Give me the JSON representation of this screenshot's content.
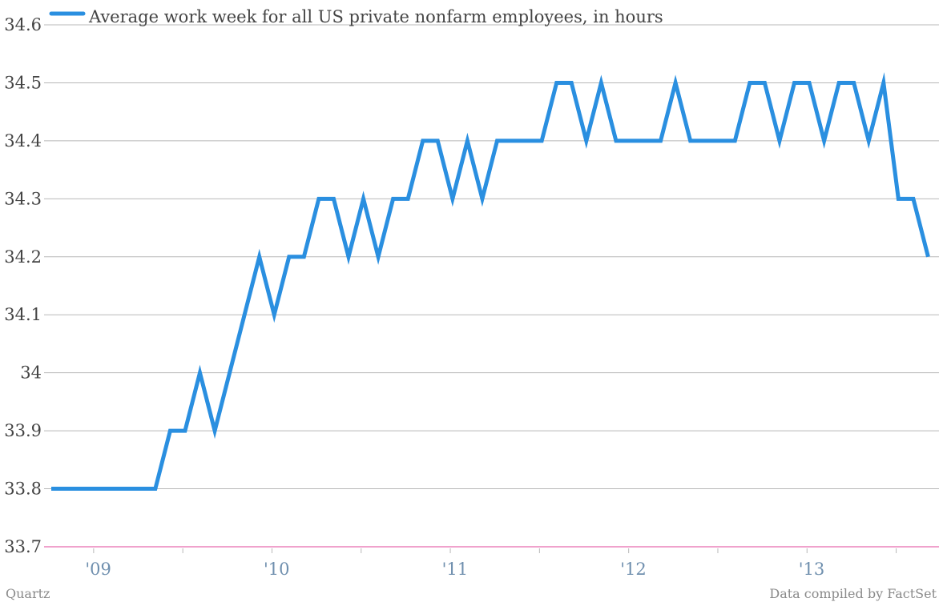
{
  "chart_data": {
    "type": "line",
    "title": "",
    "xlabel": "",
    "ylabel": "",
    "ylim": [
      33.7,
      34.6
    ],
    "y_ticks": [
      "33.7",
      "33.8",
      "33.9",
      "34",
      "34.1",
      "34.2",
      "34.3",
      "34.4",
      "34.5",
      "34.6"
    ],
    "x_tick_labels": [
      "'09",
      "'10",
      "'11",
      "'12",
      "'13"
    ],
    "grid": true,
    "legend_position": "top-left",
    "start_month": "2008-10",
    "series": [
      {
        "name": "Average work week for all US private nonfarm employees, in hours",
        "color": "#2a8fe0",
        "values": [
          33.8,
          33.8,
          33.8,
          33.8,
          33.8,
          33.8,
          33.8,
          33.8,
          33.9,
          33.9,
          34.0,
          33.9,
          34.0,
          34.1,
          34.2,
          34.1,
          34.2,
          34.2,
          34.3,
          34.3,
          34.2,
          34.3,
          34.2,
          34.3,
          34.3,
          34.4,
          34.4,
          34.3,
          34.4,
          34.3,
          34.4,
          34.4,
          34.4,
          34.4,
          34.5,
          34.5,
          34.4,
          34.5,
          34.4,
          34.4,
          34.4,
          34.4,
          34.5,
          34.4,
          34.4,
          34.4,
          34.4,
          34.5,
          34.5,
          34.4,
          34.5,
          34.5,
          34.4,
          34.5,
          34.5,
          34.4,
          34.5,
          34.3,
          34.3,
          34.2
        ]
      }
    ]
  },
  "colors": {
    "line": "#2a8fe0",
    "grid": "#b8b8b8",
    "baseline": "#e0449a",
    "x_tick_text": "#6f8fae"
  },
  "footer": {
    "left": "Quartz",
    "right": "Data compiled by FactSet"
  }
}
